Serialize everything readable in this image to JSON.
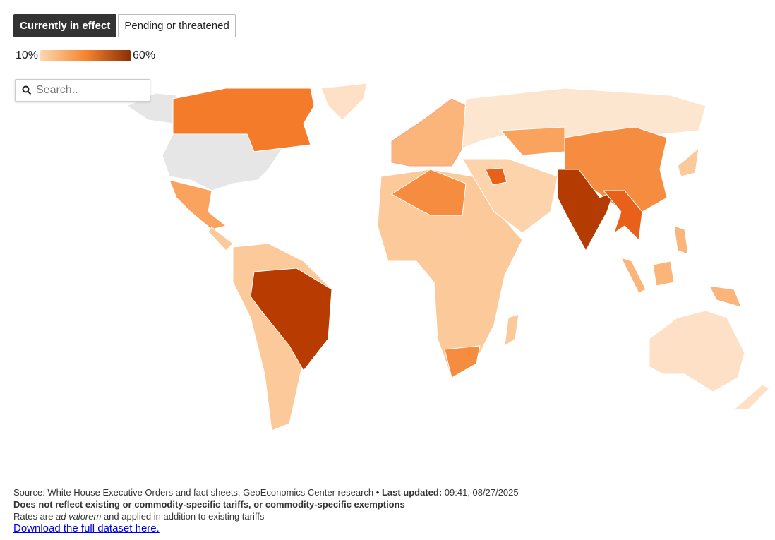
{
  "tabs": [
    "Currently in effect",
    "Pending or threatened"
  ],
  "legend": {
    "min_label": "10%",
    "max_label": "60%"
  },
  "search": {
    "placeholder": "Search.."
  },
  "footer": {
    "source": "Source: White House Executive Orders and fact sheets, GeoEconomics Center research",
    "separator": "•",
    "updated_label": "Last updated:",
    "updated_value": "09:41, 08/27/2025",
    "note": "Does not reflect existing or commodity-specific tariffs, or commodity-specific exemptions",
    "rates_prefix": "Rates are",
    "rates_italic": "ad valorem",
    "rates_suffix": "and applied in addition to existing tariffs",
    "link": "Download the full dataset here."
  }
}
